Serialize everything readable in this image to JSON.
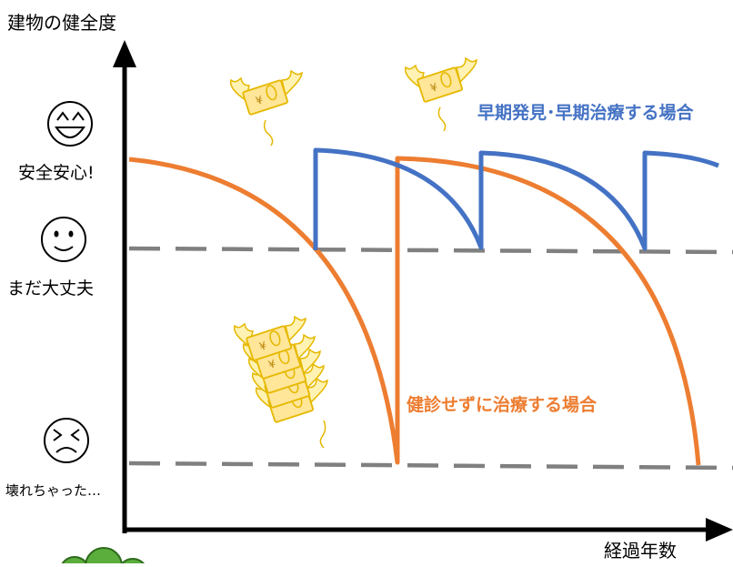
{
  "axis": {
    "y_label": "建物の健全度",
    "x_label": "経過年数"
  },
  "levels": [
    {
      "face": "laughing-face-icon",
      "label": "安全安心!"
    },
    {
      "face": "smiling-face-icon",
      "label": "まだ大丈夫"
    },
    {
      "face": "distressed-face-icon",
      "label": "壊れちゃった…"
    }
  ],
  "series": {
    "early": {
      "label": "早期発見･早期治療する場合",
      "color": "#4472C4"
    },
    "late": {
      "label": "健診せずに治療する場合",
      "color": "#ED7D31"
    }
  },
  "money_symbol": "¥",
  "colors": {
    "axis": "#000000",
    "threshold": "#808080",
    "money_fill": "#FFE699",
    "money_stroke": "#E6B800",
    "wing_fill": "#FFF2B3"
  }
}
